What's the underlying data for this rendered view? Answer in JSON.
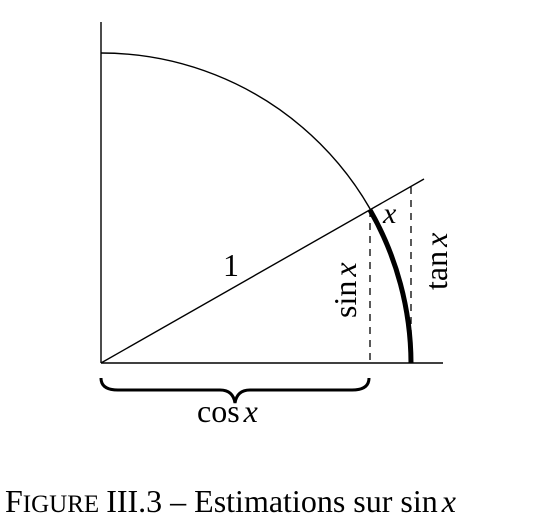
{
  "diagram": {
    "labels": {
      "radius": "1",
      "sin_fn": "sin",
      "sin_var": "x",
      "cos_fn": "cos",
      "cos_var": "x",
      "tan_fn": "tan",
      "tan_var": "x",
      "arc_var": "x"
    }
  },
  "caption": {
    "prefix_cap": "F",
    "prefix_small": "IGURE",
    "number": "III.3 – Estimations sur ",
    "fn": "sin",
    "var": "x"
  },
  "colors": {
    "ink": "#000000",
    "background": "#ffffff"
  }
}
